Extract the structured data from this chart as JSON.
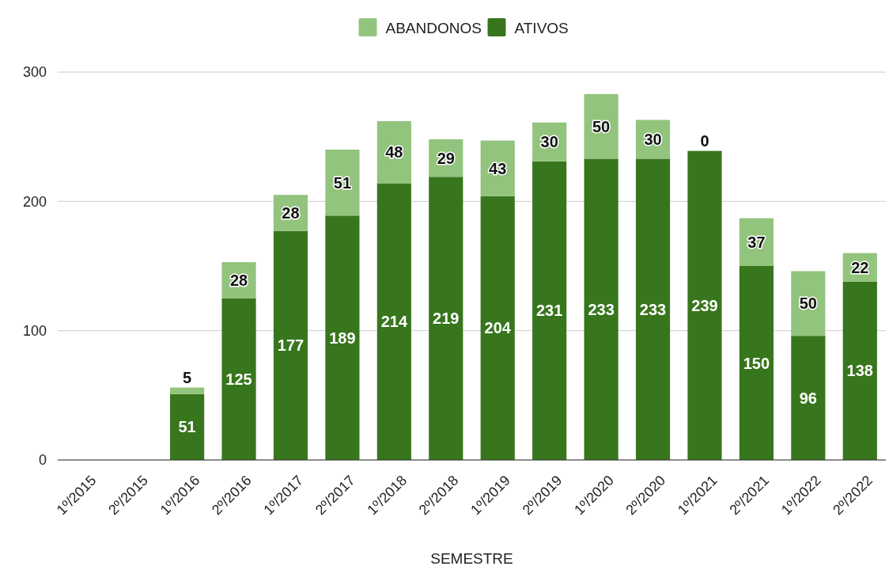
{
  "chart_data": {
    "type": "bar",
    "stacked": true,
    "xlabel": "SEMESTRE",
    "categories": [
      "1º/2015",
      "2º/2015",
      "1º/2016",
      "2º/2016",
      "1º/2017",
      "2º/2017",
      "1º/2018",
      "2º/2018",
      "1º/2019",
      "2º/2019",
      "1º/2020",
      "2º/2020",
      "1º/2021",
      "2º/2021",
      "1º/2022",
      "2º/2022"
    ],
    "series": [
      {
        "name": "ATIVOS",
        "color": "#38761d",
        "values": [
          null,
          null,
          51,
          125,
          177,
          189,
          214,
          219,
          204,
          231,
          233,
          233,
          239,
          150,
          96,
          138
        ]
      },
      {
        "name": "ABANDONOS",
        "color": "#93c47d",
        "values": [
          null,
          null,
          5,
          28,
          28,
          51,
          48,
          29,
          43,
          30,
          50,
          30,
          0,
          37,
          50,
          22
        ]
      }
    ],
    "ylim": [
      0,
      300
    ],
    "yticks": [
      0,
      100,
      200,
      300
    ],
    "grid": "y",
    "legend": "top",
    "data_labels": true
  }
}
